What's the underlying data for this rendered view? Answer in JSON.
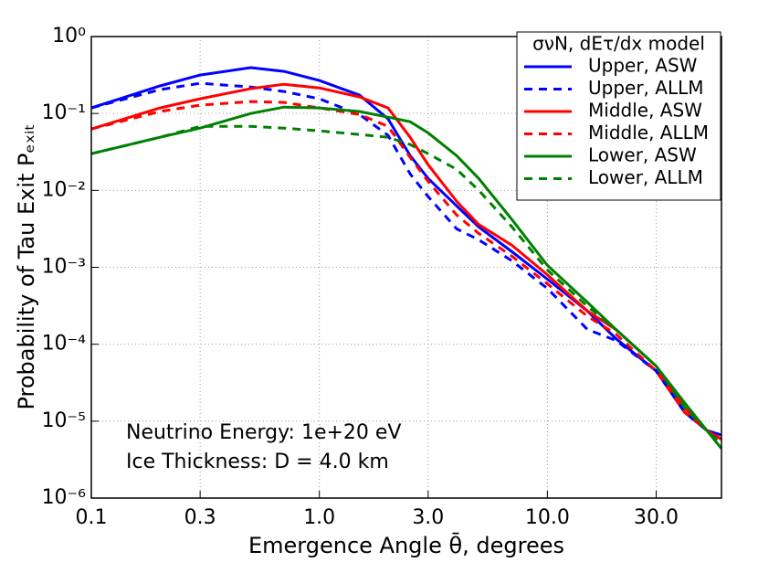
{
  "chart_data": {
    "type": "line",
    "xlabel": "Emergence Angle θ̄, degrees",
    "ylabel": "Probability of Tau Exit Pₑₓᵢₜ",
    "xscale": "log",
    "yscale": "log",
    "xlim": [
      0.1,
      58
    ],
    "ylim": [
      1e-06,
      1
    ],
    "xticks": [
      0.1,
      0.3,
      {
        "value": 1,
        "label": "1.0"
      },
      {
        "value": 3,
        "label": "3.0"
      },
      {
        "value": 10,
        "label": "10.0"
      },
      {
        "value": 30,
        "label": "30.0"
      }
    ],
    "yticks": [
      {
        "value": 1e-06,
        "label": "10⁻⁶"
      },
      {
        "value": 1e-05,
        "label": "10⁻⁵"
      },
      {
        "value": 0.0001,
        "label": "10⁻⁴"
      },
      {
        "value": 0.001,
        "label": "10⁻³"
      },
      {
        "value": 0.01,
        "label": "10⁻²"
      },
      {
        "value": 0.1,
        "label": "10⁻¹"
      },
      {
        "value": 1,
        "label": "10⁰"
      }
    ],
    "grid": true,
    "legend": "upper right",
    "legend_title": "σνN, dEτ/dx model",
    "annotations": [
      "Neutrino Energy: 1e+20 eV",
      "Ice Thickness: D = 4.0 km"
    ],
    "x": [
      0.1,
      0.2,
      0.3,
      0.5,
      0.7,
      1.0,
      1.5,
      2.0,
      2.5,
      3.0,
      4,
      5,
      7,
      10,
      15,
      20,
      30,
      40,
      50,
      58
    ],
    "series": [
      {
        "name": "Upper, ASW",
        "color": "#0000ff",
        "style": "solid",
        "values": [
          0.118,
          0.228,
          0.316,
          0.394,
          0.353,
          0.268,
          0.173,
          0.085,
          0.0283,
          0.0143,
          0.00628,
          0.00334,
          0.00159,
          0.0007,
          0.00027,
          0.000118,
          4.5e-05,
          1.3e-05,
          7.6e-06,
          6.6e-06
        ]
      },
      {
        "name": "Upper, ALLM",
        "color": "#0000ff",
        "style": "dashed",
        "values": [
          0.118,
          0.204,
          0.247,
          0.221,
          0.193,
          0.155,
          0.097,
          0.052,
          0.0164,
          0.0083,
          0.00316,
          0.00228,
          0.00121,
          0.00053,
          0.000155,
          0.000112,
          4.5e-05,
          1.3e-05,
          7.6e-06,
          5.8e-06
        ]
      },
      {
        "name": "Middle, ASW",
        "color": "#ff0000",
        "style": "solid",
        "values": [
          0.0628,
          0.118,
          0.155,
          0.21,
          0.24,
          0.215,
          0.164,
          0.118,
          0.049,
          0.0216,
          0.0072,
          0.0036,
          0.00193,
          0.0008,
          0.00027,
          0.000155,
          5.2e-05,
          1.5e-05,
          7.6e-06,
          5.8e-06
        ]
      },
      {
        "name": "Middle, ALLM",
        "color": "#ff0000",
        "style": "dashed",
        "values": [
          0.0628,
          0.106,
          0.128,
          0.143,
          0.139,
          0.118,
          0.097,
          0.068,
          0.0268,
          0.0131,
          0.0048,
          0.00276,
          0.00139,
          0.00061,
          0.00023,
          0.000135,
          4.5e-05,
          1.3e-05,
          7.6e-06,
          5.8e-06
        ]
      },
      {
        "name": "Lower, ASW",
        "color": "#008000",
        "style": "solid",
        "values": [
          0.03,
          0.049,
          0.0645,
          0.1,
          0.121,
          0.118,
          0.106,
          0.0896,
          0.078,
          0.056,
          0.0283,
          0.0143,
          0.00416,
          0.00106,
          0.00035,
          0.000155,
          5.2e-05,
          1.73e-05,
          7.6e-06,
          4.4e-06
        ]
      },
      {
        "name": "Lower, ALLM",
        "color": "#008000",
        "style": "dashed",
        "values": [
          0.03,
          0.049,
          0.068,
          0.068,
          0.0645,
          0.0594,
          0.0532,
          0.049,
          0.0394,
          0.03,
          0.0188,
          0.01,
          0.00334,
          0.00092,
          0.00031,
          0.000155,
          5.2e-05,
          1.5e-05,
          7.6e-06,
          5e-06
        ]
      }
    ]
  }
}
